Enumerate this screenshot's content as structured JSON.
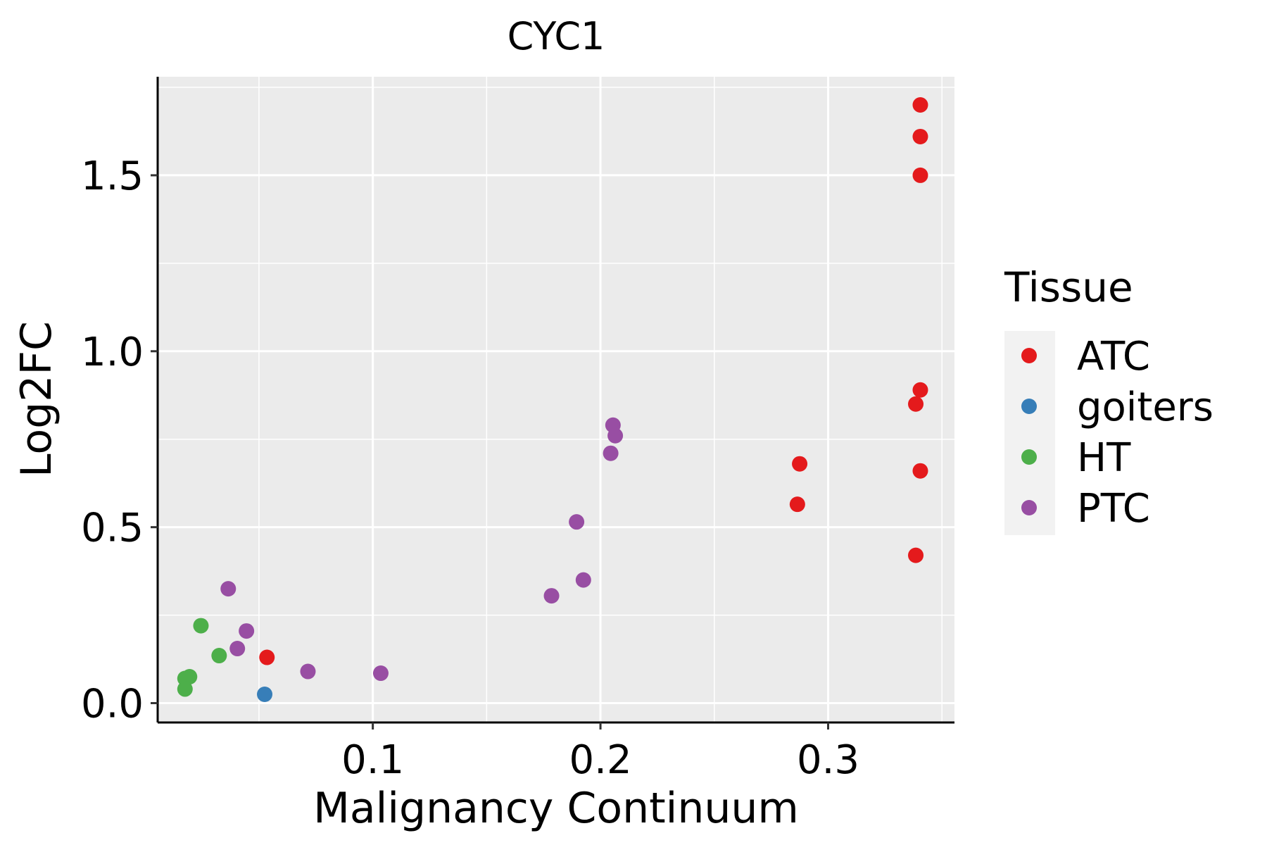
{
  "chart_data": {
    "type": "scatter",
    "title": "CYC1",
    "xlabel": "Malignancy Continuum",
    "ylabel": "Log2FC",
    "xlim": [
      0.0055,
      0.3555
    ],
    "ylim": [
      -0.055,
      1.78
    ],
    "xticks": [
      0.1,
      0.2,
      0.3
    ],
    "xtick_labels": [
      "0.1",
      "0.2",
      "0.3"
    ],
    "yticks": [
      0.0,
      0.5,
      1.0,
      1.5
    ],
    "ytick_labels": [
      "0.0",
      "0.5",
      "1.0",
      "1.5"
    ],
    "x_minor": [
      0.05,
      0.15,
      0.25,
      0.35
    ],
    "y_minor": [
      0.25,
      0.75,
      1.25,
      1.75
    ],
    "grid": true,
    "legend": {
      "title": "Tissue",
      "position": "right",
      "entries": [
        {
          "name": "ATC",
          "color": "#E41A1C"
        },
        {
          "name": "goiters",
          "color": "#377EB8"
        },
        {
          "name": "HT",
          "color": "#4DAF4A"
        },
        {
          "name": "PTC",
          "color": "#984EA3"
        }
      ]
    },
    "series": [
      {
        "name": "ATC",
        "color": "#E41A1C",
        "points": [
          {
            "x": 0.3405,
            "y": 1.7
          },
          {
            "x": 0.3405,
            "y": 1.61
          },
          {
            "x": 0.3405,
            "y": 1.5
          },
          {
            "x": 0.3405,
            "y": 0.89
          },
          {
            "x": 0.3385,
            "y": 0.85
          },
          {
            "x": 0.3405,
            "y": 0.66
          },
          {
            "x": 0.3385,
            "y": 0.42
          },
          {
            "x": 0.2875,
            "y": 0.68
          },
          {
            "x": 0.2865,
            "y": 0.565
          },
          {
            "x": 0.0535,
            "y": 0.13
          }
        ]
      },
      {
        "name": "goiters",
        "color": "#377EB8",
        "points": [
          {
            "x": 0.0525,
            "y": 0.025
          }
        ]
      },
      {
        "name": "HT",
        "color": "#4DAF4A",
        "points": [
          {
            "x": 0.0245,
            "y": 0.22
          },
          {
            "x": 0.0325,
            "y": 0.135
          },
          {
            "x": 0.0195,
            "y": 0.075
          },
          {
            "x": 0.0175,
            "y": 0.07
          },
          {
            "x": 0.0175,
            "y": 0.04
          }
        ]
      },
      {
        "name": "PTC",
        "color": "#984EA3",
        "points": [
          {
            "x": 0.2055,
            "y": 0.79
          },
          {
            "x": 0.2065,
            "y": 0.76
          },
          {
            "x": 0.2045,
            "y": 0.71
          },
          {
            "x": 0.1895,
            "y": 0.515
          },
          {
            "x": 0.1925,
            "y": 0.35
          },
          {
            "x": 0.1785,
            "y": 0.305
          },
          {
            "x": 0.0365,
            "y": 0.325
          },
          {
            "x": 0.0445,
            "y": 0.205
          },
          {
            "x": 0.0405,
            "y": 0.155
          },
          {
            "x": 0.0715,
            "y": 0.09
          },
          {
            "x": 0.1035,
            "y": 0.085
          }
        ]
      }
    ]
  }
}
